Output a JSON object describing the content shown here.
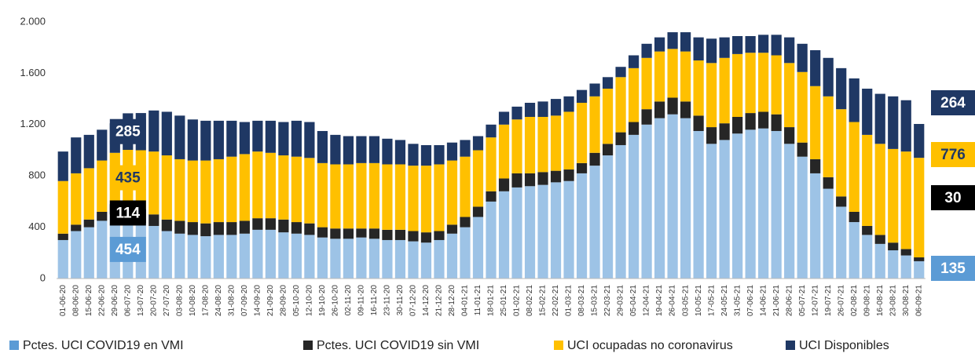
{
  "chart_data": {
    "type": "bar",
    "stacked": true,
    "categories": [
      "01-06-20",
      "08-06-20",
      "15-06-20",
      "22-06-20",
      "29-06-20",
      "06-07-20",
      "13-07-20",
      "20-07-20",
      "27-07-20",
      "03-08-20",
      "10-08-20",
      "17-08-20",
      "24-08-20",
      "31-08-20",
      "07-09-20",
      "14-09-20",
      "21-09-20",
      "28-09-20",
      "05-10-20",
      "12-10-20",
      "19-10-20",
      "26-10-20",
      "02-11-20",
      "09-11-20",
      "16-11-20",
      "23-11-20",
      "30-11-20",
      "07-12-20",
      "14-12-20",
      "21-12-20",
      "28-12-20",
      "04-01-21",
      "11-01-21",
      "18-01-21",
      "25-01-21",
      "01-02-21",
      "08-02-21",
      "15-02-21",
      "22-02-21",
      "01-03-21",
      "08-03-21",
      "15-03-21",
      "22-03-21",
      "29-03-21",
      "05-04-21",
      "12-04-21",
      "19-04-21",
      "26-04-21",
      "03-05-21",
      "10-05-21",
      "17-05-21",
      "24-05-21",
      "31-05-21",
      "07-06-21",
      "14-06-21",
      "21-06-21",
      "28-06-21",
      "05-07-21",
      "12-07-21",
      "19-07-21",
      "26-07-21",
      "02-08-21",
      "09-08-21",
      "16-08-21",
      "23-08-21",
      "30-08-21",
      "06-09-21"
    ],
    "series": [
      {
        "name": "Pctes. UCI COVID19 en VMI",
        "color": "#9dc3e6",
        "label_color": "#5b9bd5",
        "values": [
          300,
          370,
          400,
          450,
          500,
          454,
          430,
          410,
          370,
          350,
          340,
          330,
          340,
          340,
          350,
          380,
          380,
          360,
          350,
          340,
          320,
          310,
          310,
          320,
          310,
          300,
          300,
          290,
          280,
          300,
          350,
          400,
          480,
          600,
          680,
          710,
          720,
          730,
          750,
          760,
          820,
          880,
          960,
          1040,
          1120,
          1200,
          1250,
          1280,
          1250,
          1150,
          1050,
          1080,
          1130,
          1160,
          1170,
          1150,
          1050,
          950,
          820,
          700,
          560,
          440,
          340,
          270,
          220,
          180,
          135
        ]
      },
      {
        "name": "Pctes. UCI COVID19 sin VMI",
        "color": "#262626",
        "label_color": "#000000",
        "values": [
          50,
          50,
          60,
          70,
          80,
          114,
          110,
          90,
          90,
          100,
          100,
          100,
          100,
          100,
          100,
          90,
          90,
          100,
          90,
          90,
          80,
          80,
          80,
          70,
          80,
          80,
          80,
          80,
          80,
          70,
          70,
          80,
          80,
          80,
          100,
          110,
          100,
          100,
          90,
          90,
          80,
          100,
          90,
          100,
          100,
          120,
          130,
          130,
          130,
          120,
          130,
          130,
          130,
          130,
          130,
          130,
          130,
          110,
          110,
          90,
          80,
          80,
          70,
          70,
          60,
          50,
          30
        ]
      },
      {
        "name": "UCI ocupadas no coronavirus",
        "color": "#ffc000",
        "label_color": "#ffc000",
        "values": [
          410,
          400,
          400,
          400,
          400,
          435,
          460,
          490,
          500,
          480,
          480,
          490,
          490,
          510,
          520,
          520,
          510,
          500,
          510,
          510,
          500,
          500,
          500,
          510,
          510,
          510,
          510,
          510,
          520,
          520,
          500,
          470,
          440,
          420,
          420,
          420,
          440,
          430,
          430,
          450,
          470,
          440,
          430,
          430,
          420,
          400,
          390,
          380,
          390,
          430,
          500,
          510,
          490,
          470,
          460,
          460,
          500,
          550,
          570,
          630,
          680,
          700,
          710,
          710,
          730,
          760,
          776
        ]
      },
      {
        "name": "UCI Disponibles",
        "color": "#1f3864",
        "label_color": "#1f3864",
        "values": [
          230,
          280,
          260,
          240,
          230,
          285,
          290,
          320,
          340,
          340,
          320,
          310,
          300,
          280,
          250,
          240,
          250,
          260,
          280,
          280,
          250,
          230,
          220,
          210,
          210,
          200,
          190,
          170,
          160,
          150,
          140,
          130,
          110,
          100,
          100,
          100,
          110,
          120,
          130,
          120,
          100,
          100,
          90,
          80,
          100,
          110,
          110,
          130,
          150,
          180,
          190,
          160,
          140,
          130,
          140,
          160,
          200,
          220,
          280,
          300,
          320,
          340,
          360,
          390,
          410,
          400,
          264
        ]
      }
    ],
    "data_labels": [
      {
        "series": 0,
        "point": 5
      },
      {
        "series": 1,
        "point": 5
      },
      {
        "series": 2,
        "point": 5
      },
      {
        "series": 3,
        "point": 5
      },
      {
        "series": 0,
        "point": 66
      },
      {
        "series": 1,
        "point": 66
      },
      {
        "series": 2,
        "point": 66
      },
      {
        "series": 3,
        "point": 66
      }
    ],
    "ylim": [
      0,
      2000
    ],
    "yticks": [
      0,
      400,
      800,
      {
        "value": 1200,
        "label": "1.200"
      },
      {
        "value": 1600,
        "label": "1.600"
      },
      {
        "value": 2000,
        "label": "2.000"
      }
    ],
    "grid": false,
    "legend": "bottom"
  }
}
